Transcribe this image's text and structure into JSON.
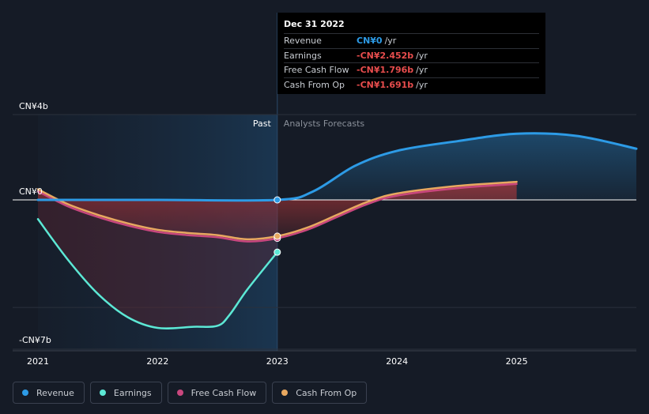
{
  "colors": {
    "revenue": "#2d9be6",
    "earnings": "#5ce8d5",
    "free_cash_flow": "#c9477e",
    "cash_from_op": "#e8a860",
    "background": "#151b26"
  },
  "tooltip": {
    "date": "Dec 31 2022",
    "rows": [
      {
        "label": "Revenue",
        "value": "CN¥0",
        "unit": "/yr",
        "color": "#2d9be6"
      },
      {
        "label": "Earnings",
        "value": "-CN¥2.452b",
        "unit": "/yr",
        "color": "#e84d4d"
      },
      {
        "label": "Free Cash Flow",
        "value": "-CN¥1.796b",
        "unit": "/yr",
        "color": "#e84d4d"
      },
      {
        "label": "Cash From Op",
        "value": "-CN¥1.691b",
        "unit": "/yr",
        "color": "#e84d4d"
      }
    ]
  },
  "legend": [
    {
      "label": "Revenue",
      "color": "#2d9be6"
    },
    {
      "label": "Earnings",
      "color": "#5ce8d5"
    },
    {
      "label": "Free Cash Flow",
      "color": "#c9477e"
    },
    {
      "label": "Cash From Op",
      "color": "#e8a860"
    }
  ],
  "chart_data": {
    "type": "line",
    "y_tick_labels": [
      "CN¥4b",
      "CN¥0",
      "-CN¥7b"
    ],
    "y_ticks": [
      4,
      0,
      -7
    ],
    "ylim": [
      -7,
      4
    ],
    "xlim": [
      2021,
      2026
    ],
    "x_tick_labels": [
      "2021",
      "2022",
      "2023",
      "2024",
      "2025"
    ],
    "x_ticks": [
      2021,
      2022,
      2023,
      2024,
      2025
    ],
    "divider_x": 2023.0,
    "region_labels": {
      "past": "Past",
      "forecast": "Analysts Forecasts"
    },
    "grid": true,
    "legend_position": "bottom-left",
    "series": [
      {
        "key": "revenue",
        "name": "Revenue",
        "x": [
          2021.0,
          2022.0,
          2023.0,
          2023.3,
          2023.65,
          2024.0,
          2024.5,
          2025.0,
          2025.5,
          2026.0
        ],
        "y": [
          0,
          0,
          0,
          0.4,
          1.6,
          2.3,
          2.75,
          3.1,
          3.0,
          2.4
        ]
      },
      {
        "key": "earnings",
        "name": "Earnings",
        "x": [
          2021.0,
          2021.25,
          2021.5,
          2021.75,
          2022.0,
          2022.3,
          2022.5,
          2022.6,
          2022.75,
          2023.0
        ],
        "y": [
          -0.9,
          -2.8,
          -4.4,
          -5.5,
          -6.0,
          -5.95,
          -5.9,
          -5.4,
          -4.2,
          -2.45
        ]
      },
      {
        "key": "free_cash_flow",
        "name": "Free Cash Flow",
        "x": [
          2021.0,
          2021.25,
          2021.5,
          2021.75,
          2022.0,
          2022.25,
          2022.5,
          2022.75,
          2023.0,
          2023.25,
          2023.5,
          2023.75,
          2024.0,
          2024.5,
          2025.0
        ],
        "y": [
          0.4,
          -0.3,
          -0.8,
          -1.2,
          -1.5,
          -1.65,
          -1.75,
          -1.95,
          -1.8,
          -1.4,
          -0.8,
          -0.2,
          0.2,
          0.55,
          0.75
        ]
      },
      {
        "key": "cash_from_op",
        "name": "Cash From Op",
        "x": [
          2021.0,
          2021.25,
          2021.5,
          2021.75,
          2022.0,
          2022.25,
          2022.5,
          2022.75,
          2023.0,
          2023.25,
          2023.5,
          2023.75,
          2024.0,
          2024.5,
          2025.0
        ],
        "y": [
          0.5,
          -0.2,
          -0.7,
          -1.1,
          -1.4,
          -1.55,
          -1.65,
          -1.85,
          -1.7,
          -1.3,
          -0.7,
          -0.1,
          0.3,
          0.65,
          0.85
        ]
      }
    ]
  }
}
